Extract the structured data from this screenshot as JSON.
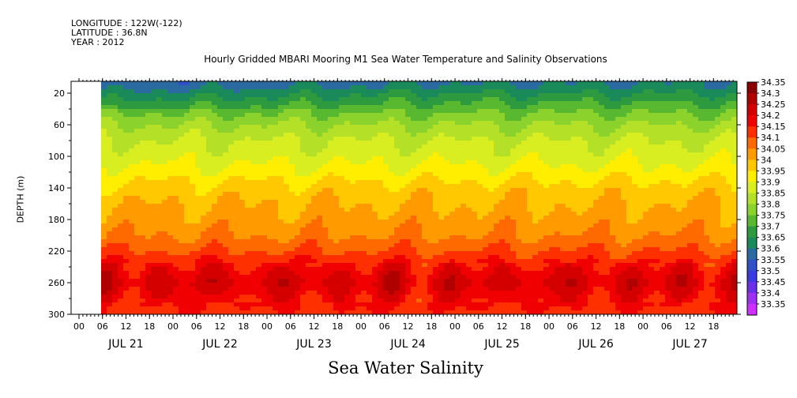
{
  "header": {
    "longitude": "LONGITUDE : 122W(-122)",
    "latitude": "LATITUDE : 36.8N",
    "year": "YEAR : 2012"
  },
  "chart_data": {
    "type": "heatmap",
    "title": "Hourly Gridded MBARI Mooring M1 Sea Water Temperature and Salinity Observations",
    "ylabel": "DEPTH (m)",
    "xlabel": "Sea Water Salinity",
    "y_ticks": [
      20,
      60,
      100,
      140,
      180,
      220,
      260,
      300
    ],
    "y_range": [
      5,
      300
    ],
    "x_hour_ticks": [
      "00",
      "06",
      "12",
      "18",
      "00",
      "06",
      "12",
      "18",
      "00",
      "06",
      "12",
      "18",
      "00",
      "06",
      "12",
      "18",
      "00",
      "06",
      "12",
      "18",
      "00",
      "06",
      "12",
      "18",
      "00",
      "06",
      "12",
      "18"
    ],
    "x_dates": [
      "JUL 21",
      "JUL 22",
      "JUL 23",
      "JUL 24",
      "JUL 25",
      "JUL 26",
      "JUL 27"
    ],
    "data_start": "JUL 21 06",
    "colorbar_levels": [
      "34.35",
      "34.3",
      "34.25",
      "34.2",
      "34.15",
      "34.1",
      "34.05",
      "34",
      "33.95",
      "33.9",
      "33.85",
      "33.8",
      "33.75",
      "33.7",
      "33.65",
      "33.6",
      "33.55",
      "33.5",
      "33.45",
      "33.4",
      "33.35"
    ],
    "colorbar_colors": [
      "#8b0000",
      "#b00000",
      "#d40000",
      "#f00000",
      "#ff3000",
      "#ff6a00",
      "#ff9a00",
      "#ffc800",
      "#ffee00",
      "#d8ee20",
      "#b4e028",
      "#8cd22c",
      "#58b830",
      "#2e9a40",
      "#1a8a5a",
      "#2a6aa0",
      "#3050c8",
      "#3a3ae0",
      "#6a30e8",
      "#a030f0",
      "#d030ff"
    ],
    "depth_profile": [
      {
        "depth": 10,
        "value": 33.65
      },
      {
        "depth": 20,
        "value": 33.7
      },
      {
        "depth": 40,
        "value": 33.78
      },
      {
        "depth": 60,
        "value": 33.85
      },
      {
        "depth": 80,
        "value": 33.9
      },
      {
        "depth": 100,
        "value": 33.93
      },
      {
        "depth": 120,
        "value": 33.97
      },
      {
        "depth": 140,
        "value": 34.02
      },
      {
        "depth": 160,
        "value": 34.05
      },
      {
        "depth": 180,
        "value": 34.07
      },
      {
        "depth": 200,
        "value": 34.1
      },
      {
        "depth": 220,
        "value": 34.15
      },
      {
        "depth": 240,
        "value": 34.22
      },
      {
        "depth": 260,
        "value": 34.27
      },
      {
        "depth": 280,
        "value": 34.22
      },
      {
        "depth": 300,
        "value": 34.18
      }
    ]
  }
}
